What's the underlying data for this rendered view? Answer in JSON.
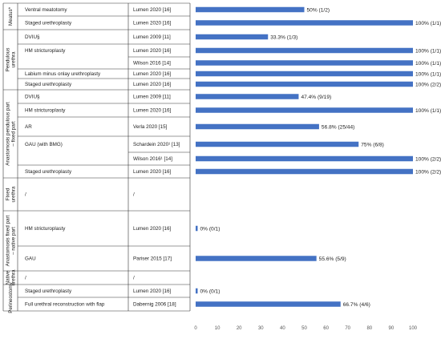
{
  "chart_data": {
    "type": "bar",
    "orientation": "horizontal",
    "xlim": [
      0,
      100
    ],
    "x_ticks": [
      "0",
      "10",
      "20",
      "30",
      "40",
      "50",
      "60",
      "70",
      "80",
      "90",
      "100"
    ],
    "bar_color": "#4472c4",
    "grid": false,
    "groups": [
      {
        "name": "Meatus*",
        "rows": [
          {
            "technique": "Ventral meatotomy",
            "study": "Lumen 2020 [16]",
            "value": 50,
            "label": "50% (1/2)"
          },
          {
            "technique": "Staged urethroplasty",
            "study": "Lumen 2020 [16]",
            "value": 100,
            "label": "100% (1/1)"
          }
        ]
      },
      {
        "name": "Pendulous urethra",
        "rows": [
          {
            "technique": "DVIU§",
            "study": "Lumen 2009 [11]",
            "value": 33.3,
            "label": "33.3% (1/3)"
          },
          {
            "technique": "HM stricturoplasty",
            "study": "Lumen 2020 [16]",
            "value": 100,
            "label": "100% (1/1)"
          },
          {
            "technique": "",
            "study": "Wilson 2016 [14]",
            "value": 100,
            "label": "100% (1/1)"
          },
          {
            "technique": "Labium minus onlay urethroplasty",
            "study": "Lumen 2020 [16]",
            "value": 100,
            "label": "100% (1/1)"
          },
          {
            "technique": "Staged urethroplasty",
            "study": "Lumen 2020 [16]",
            "value": 100,
            "label": "100% (2/2)"
          }
        ]
      },
      {
        "name": "Anastomosis pendulous part – fixed part",
        "rows": [
          {
            "technique": "DVIU§",
            "study": "Lumen 2009 [11]",
            "value": 47.4,
            "label": "47.4%  (9/19)"
          },
          {
            "technique": "HM stricturoplasty",
            "study": "Lumen 2020 [16]",
            "value": 100,
            "label": "100% (1/1)"
          },
          {
            "technique": "AR",
            "study": "Verla 2020 [15]",
            "value": 56.8,
            "label": "56.8% (25/44)"
          },
          {
            "technique": "GAU (with BMG)",
            "study": "Schardein 2020¹ [13]",
            "value": 75,
            "label": "75% (6/8)"
          },
          {
            "technique": "",
            "study": "Wilson 2016¹ [14]",
            "value": 100,
            "label": "100% (2/2)"
          },
          {
            "technique": "Staged urethroplasty",
            "study": "Lumen 2020 [16]",
            "value": 100,
            "label": "100% (2/2)"
          }
        ]
      },
      {
        "name": "Fixed urethra",
        "rows": [
          {
            "technique": "/",
            "study": "/",
            "value": null,
            "label": ""
          }
        ]
      },
      {
        "name": "Anastomosis fixed part – native part",
        "rows": [
          {
            "technique": "HM stricturoplasty",
            "study": "Lumen 2020 [16]",
            "value": 0,
            "label": "0% (0/1)"
          },
          {
            "technique": "GAU",
            "study": "Pariser 2015 [17]",
            "value": 55.6,
            "label": "55.6% (5/9)"
          }
        ]
      },
      {
        "name": "Native urethra",
        "rows": [
          {
            "technique": "/",
            "study": "/",
            "value": null,
            "label": ""
          }
        ]
      },
      {
        "name": "Perineostomy",
        "rows": [
          {
            "technique": "Staged urethroplasty",
            "study": "Lumen 2020 [16]",
            "value": 0,
            "label": "0% (0/1)"
          },
          {
            "technique": "Full urethral reconstruction with flap",
            "study": "Dabernig 2006 [18]",
            "value": 66.7,
            "label": "66.7% (4/6)"
          }
        ]
      }
    ]
  }
}
